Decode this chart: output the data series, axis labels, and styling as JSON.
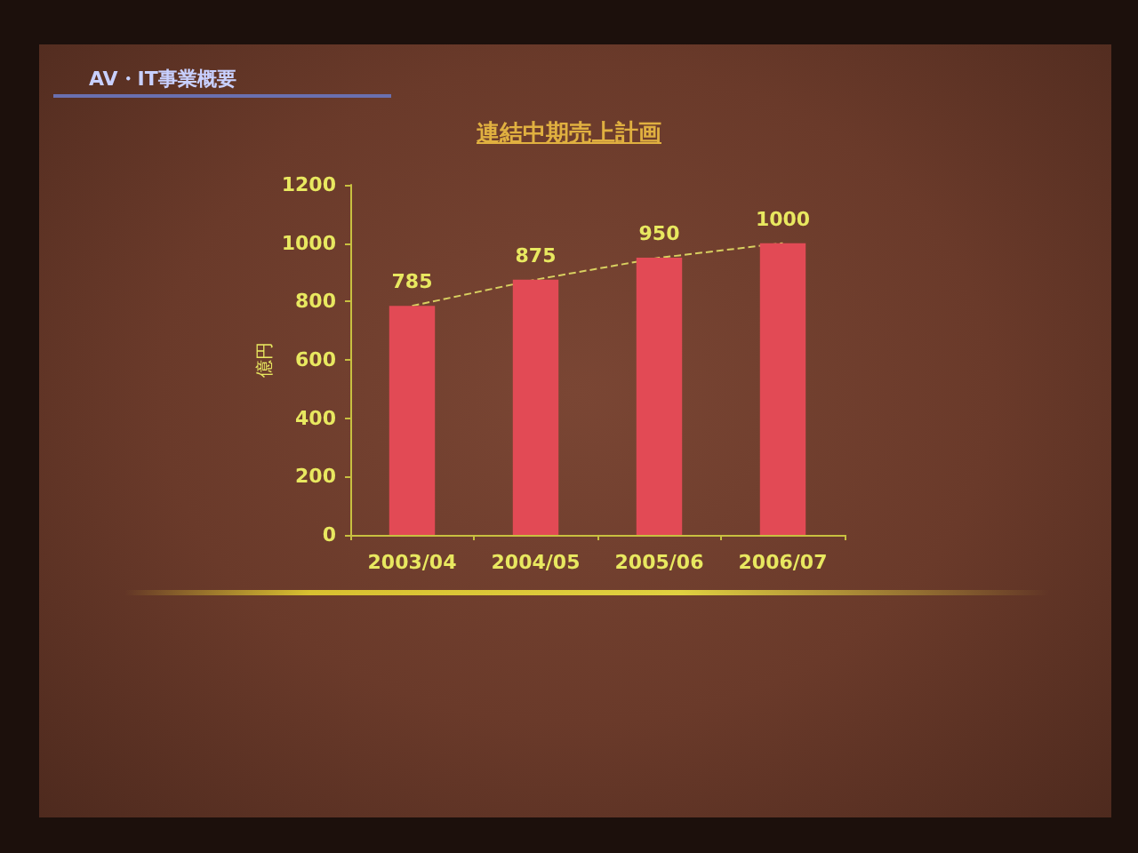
{
  "chart_data": {
    "type": "bar",
    "title": "連結中期売上計画",
    "ylabel": "億円",
    "annotations": [
      "AV・IT事業概要"
    ],
    "categories": [
      "2003/04",
      "2004/05",
      "2005/06",
      "2006/07"
    ],
    "series": [
      {
        "color": "#e24a55",
        "values": [
          785,
          875,
          950,
          1000
        ],
        "value_labels": [
          "785",
          "875",
          "950",
          "1000"
        ]
      },
      {
        "type": "line",
        "color": "#d8d060",
        "values": [
          785,
          875,
          950,
          1000
        ]
      }
    ],
    "ylim": [
      0,
      1200
    ],
    "yticks": [
      0,
      200,
      400,
      600,
      800,
      1000,
      1200
    ],
    "line_style": "dashed",
    "marker": "none"
  }
}
